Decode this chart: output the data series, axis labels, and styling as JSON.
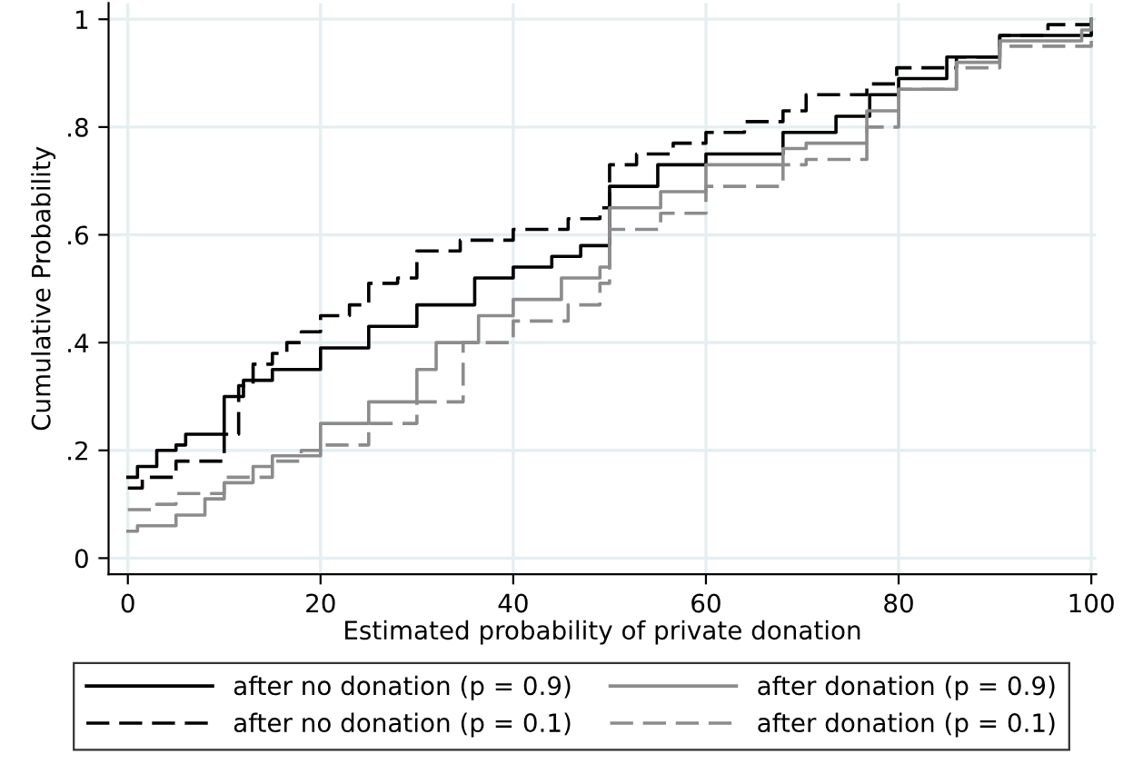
{
  "chart_data": {
    "type": "step",
    "xlabel": "Estimated probability of private donation",
    "ylabel": "Cumulative Probability",
    "xlim": [
      -2,
      100.5
    ],
    "ylim": [
      -0.03,
      1.03
    ],
    "xticks": [
      0,
      20,
      40,
      60,
      80,
      100
    ],
    "yticks": [
      {
        "value": 0,
        "label": "0"
      },
      {
        "value": 0.2,
        "label": ".2"
      },
      {
        "value": 0.4,
        "label": ".4"
      },
      {
        "value": 0.6,
        "label": ".6"
      },
      {
        "value": 0.8,
        "label": ".8"
      },
      {
        "value": 1,
        "label": "1"
      }
    ],
    "grid": true,
    "legend": "bottom",
    "marker": "none",
    "series": [
      {
        "name": "after no donation (p = 0.9)",
        "color": "#000000",
        "line_style": "solid",
        "x": [
          0,
          1,
          3,
          5,
          6,
          10,
          12,
          15,
          20,
          25,
          30,
          36,
          40,
          44,
          47,
          50,
          55,
          60,
          68,
          73.5,
          77,
          80,
          85,
          90.5,
          100,
          100
        ],
        "values": [
          0.15,
          0.17,
          0.2,
          0.21,
          0.23,
          0.3,
          0.33,
          0.35,
          0.39,
          0.43,
          0.47,
          0.52,
          0.54,
          0.56,
          0.58,
          0.69,
          0.73,
          0.75,
          0.79,
          0.82,
          0.86,
          0.89,
          0.93,
          0.97,
          0.98,
          1
        ]
      },
      {
        "name": "after no donation (p = 0.1)",
        "color": "#000000",
        "line_style": "dashed",
        "x": [
          0,
          1.5,
          5,
          10,
          11.5,
          13,
          15,
          16.5,
          18,
          20,
          23,
          25,
          28,
          30,
          34.5,
          40,
          45.7,
          49,
          50,
          52.8,
          56.6,
          60,
          64,
          68,
          70.4,
          76.7,
          79.8,
          86,
          90.5,
          95.5,
          99,
          100
        ],
        "values": [
          0.13,
          0.15,
          0.18,
          0.23,
          0.32,
          0.36,
          0.38,
          0.4,
          0.42,
          0.45,
          0.47,
          0.51,
          0.52,
          0.57,
          0.59,
          0.61,
          0.63,
          0.65,
          0.73,
          0.75,
          0.77,
          0.79,
          0.81,
          0.83,
          0.86,
          0.88,
          0.91,
          0.93,
          0.97,
          0.99,
          0.99,
          1
        ]
      },
      {
        "name": "after donation (p = 0.9)",
        "color": "#8c8c8c",
        "line_style": "solid",
        "x": [
          0,
          1,
          5,
          8,
          10,
          13,
          15,
          20,
          25,
          30,
          32,
          36.4,
          40,
          45,
          49,
          50,
          55.3,
          60,
          68,
          70.4,
          76.7,
          80,
          86,
          90.5,
          99,
          100
        ],
        "values": [
          0.05,
          0.06,
          0.08,
          0.11,
          0.14,
          0.17,
          0.19,
          0.25,
          0.29,
          0.35,
          0.4,
          0.45,
          0.48,
          0.52,
          0.54,
          0.65,
          0.68,
          0.73,
          0.76,
          0.77,
          0.83,
          0.87,
          0.92,
          0.96,
          0.98,
          1
        ]
      },
      {
        "name": "after donation (p = 0.1)",
        "color": "#8c8c8c",
        "line_style": "dashed",
        "x": [
          0,
          3,
          5,
          10,
          15,
          18,
          20,
          25,
          30,
          34.8,
          40,
          45.7,
          49,
          50,
          55.3,
          60,
          68,
          70.4,
          76.7,
          80,
          86,
          90.5,
          100
        ],
        "values": [
          0.09,
          0.1,
          0.12,
          0.15,
          0.18,
          0.2,
          0.21,
          0.25,
          0.29,
          0.4,
          0.44,
          0.47,
          0.51,
          0.61,
          0.64,
          0.69,
          0.73,
          0.74,
          0.8,
          0.87,
          0.91,
          0.95,
          0.96
        ]
      }
    ]
  }
}
